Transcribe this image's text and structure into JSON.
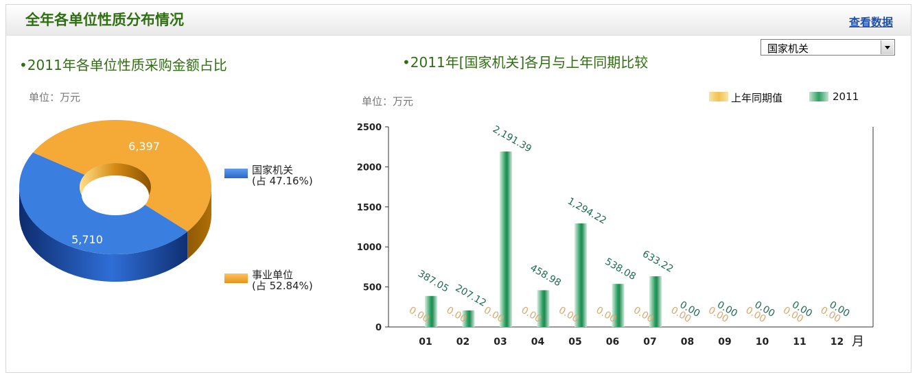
{
  "header": {
    "title": "全年各单位性质分布情况",
    "view_data_link": "查看数据"
  },
  "left": {
    "subtitle": "•2011年各单位性质采购金额占比",
    "unit": "单位：万元"
  },
  "right": {
    "subtitle": "•2011年[国家机关]各月与上年同期比较",
    "unit": "单位：万元",
    "select": {
      "selected": "国家机关"
    }
  },
  "legend": {
    "pie": [
      {
        "name": "国家机关",
        "share": "(占 47.16%)",
        "color": "#3a7fe0"
      },
      {
        "name": "事业单位",
        "share": "(占 52.84%)",
        "color": "#f5a936"
      }
    ],
    "bar": [
      {
        "name": "上年同期值",
        "color": "#f2c250"
      },
      {
        "name": "2011",
        "color": "#2e9e62"
      }
    ]
  },
  "chart_data": [
    {
      "type": "pie",
      "categories": [
        "国家机关",
        "事业单位"
      ],
      "values": [
        5710,
        6397
      ],
      "labels": [
        "5,710",
        "6,397"
      ],
      "shares": [
        "47.16%",
        "52.84%"
      ],
      "colors": [
        "#3a7fe0",
        "#f5a936"
      ],
      "style": "3d-donut",
      "legend_position": "right"
    },
    {
      "type": "bar",
      "categories": [
        "01",
        "02",
        "03",
        "04",
        "05",
        "06",
        "07",
        "08",
        "09",
        "10",
        "11",
        "12"
      ],
      "xlabel": "月",
      "ylabel": "",
      "ylim": [
        0,
        2500
      ],
      "yticks": [
        0,
        500,
        1000,
        1500,
        2000,
        2500
      ],
      "grid": false,
      "legend_position": "top-right",
      "series": [
        {
          "name": "上年同期值",
          "values": [
            0,
            0,
            0,
            0,
            0,
            0,
            0,
            0,
            0,
            0,
            0,
            0
          ],
          "labels": [
            "0.00",
            "0.00",
            "0.00",
            "0.00",
            "0.00",
            "0.00",
            "0.00",
            "0.00",
            "0.00",
            "0.00",
            "0.00",
            "0.00"
          ],
          "color": "#f2c250",
          "label_color": "#d9a86c"
        },
        {
          "name": "2011",
          "values": [
            387.05,
            207.12,
            2191.39,
            458.98,
            1294.22,
            538.08,
            633.22,
            0,
            0,
            0,
            0,
            0
          ],
          "labels": [
            "387.05",
            "207.12",
            "2,191.39",
            "458.98",
            "1,294.22",
            "538.08",
            "633.22",
            "0.00",
            "0.00",
            "0.00",
            "0.00",
            "0.00"
          ],
          "color": "#2e9e62",
          "label_color": "#1e6b50"
        }
      ]
    }
  ]
}
